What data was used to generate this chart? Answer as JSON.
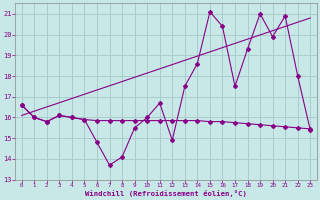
{
  "xlabel": "Windchill (Refroidissement éolien,°C)",
  "bg_color": "#c8e8e8",
  "grid_color": "#aacccc",
  "line_color": "#880088",
  "xmin": -0.5,
  "xmax": 23.5,
  "ymin": 13,
  "ymax": 21.5,
  "series_zigzag": [
    16.6,
    16.0,
    15.8,
    16.1,
    16.0,
    15.9,
    14.8,
    13.7,
    14.1,
    15.5,
    16.0,
    16.7,
    14.9,
    17.5,
    18.6,
    21.1,
    20.4,
    17.5,
    19.3,
    21.0,
    19.9,
    20.9,
    18.0,
    15.4
  ],
  "series_flat": [
    16.6,
    16.0,
    15.8,
    16.1,
    16.0,
    15.9,
    15.85,
    15.85,
    15.85,
    15.85,
    15.85,
    15.85,
    15.85,
    15.85,
    15.85,
    15.8,
    15.8,
    15.75,
    15.7,
    15.65,
    15.6,
    15.55,
    15.5,
    15.45
  ],
  "trend_x": [
    0,
    23
  ],
  "trend_y": [
    16.1,
    20.8
  ],
  "yticks": [
    13,
    14,
    15,
    16,
    17,
    18,
    19,
    20,
    21
  ],
  "xticks": [
    0,
    1,
    2,
    3,
    4,
    5,
    6,
    7,
    8,
    9,
    10,
    11,
    12,
    13,
    14,
    15,
    16,
    17,
    18,
    19,
    20,
    21,
    22,
    23
  ]
}
